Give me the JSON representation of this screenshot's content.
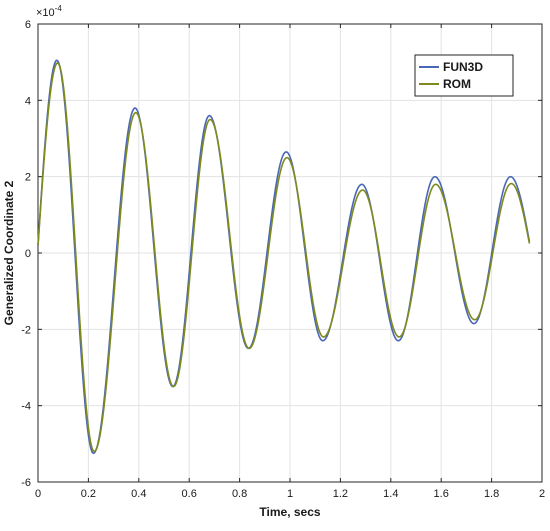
{
  "chart_data": {
    "type": "line",
    "xlabel": "Time, secs",
    "ylabel": "Generalized Coordinate 2",
    "y_exponent_label": "×10",
    "y_exponent_power": "-4",
    "xlim": [
      0,
      2
    ],
    "ylim": [
      -6,
      6
    ],
    "y_scale_factor": 0.0001,
    "x_ticks": [
      "0",
      "0.2",
      "0.4",
      "0.6",
      "0.8",
      "1",
      "1.2",
      "1.4",
      "1.6",
      "1.8",
      "2"
    ],
    "y_ticks": [
      "-6",
      "-4",
      "-2",
      "0",
      "2",
      "4",
      "6"
    ],
    "grid": true,
    "legend_position": "top-right",
    "series": [
      {
        "name": "FUN3D",
        "color": "#4a68b8",
        "x": [
          0,
          0.075,
          0.22,
          0.385,
          0.535,
          0.68,
          0.835,
          0.985,
          1.13,
          1.285,
          1.43,
          1.575,
          1.73,
          1.875,
          1.95
        ],
        "y": [
          0.2,
          5.05,
          -5.25,
          3.8,
          -3.5,
          3.6,
          -2.5,
          2.65,
          -2.3,
          1.8,
          -2.3,
          2.0,
          -1.85,
          2.0,
          0.3
        ]
      },
      {
        "name": "ROM",
        "color": "#7f8a1e",
        "x": [
          0,
          0.078,
          0.223,
          0.388,
          0.538,
          0.683,
          0.838,
          0.988,
          1.133,
          1.288,
          1.433,
          1.578,
          1.733,
          1.878,
          1.95
        ],
        "y": [
          0.2,
          4.98,
          -5.2,
          3.68,
          -3.5,
          3.5,
          -2.5,
          2.5,
          -2.2,
          1.65,
          -2.2,
          1.8,
          -1.75,
          1.82,
          0.25
        ]
      }
    ]
  }
}
